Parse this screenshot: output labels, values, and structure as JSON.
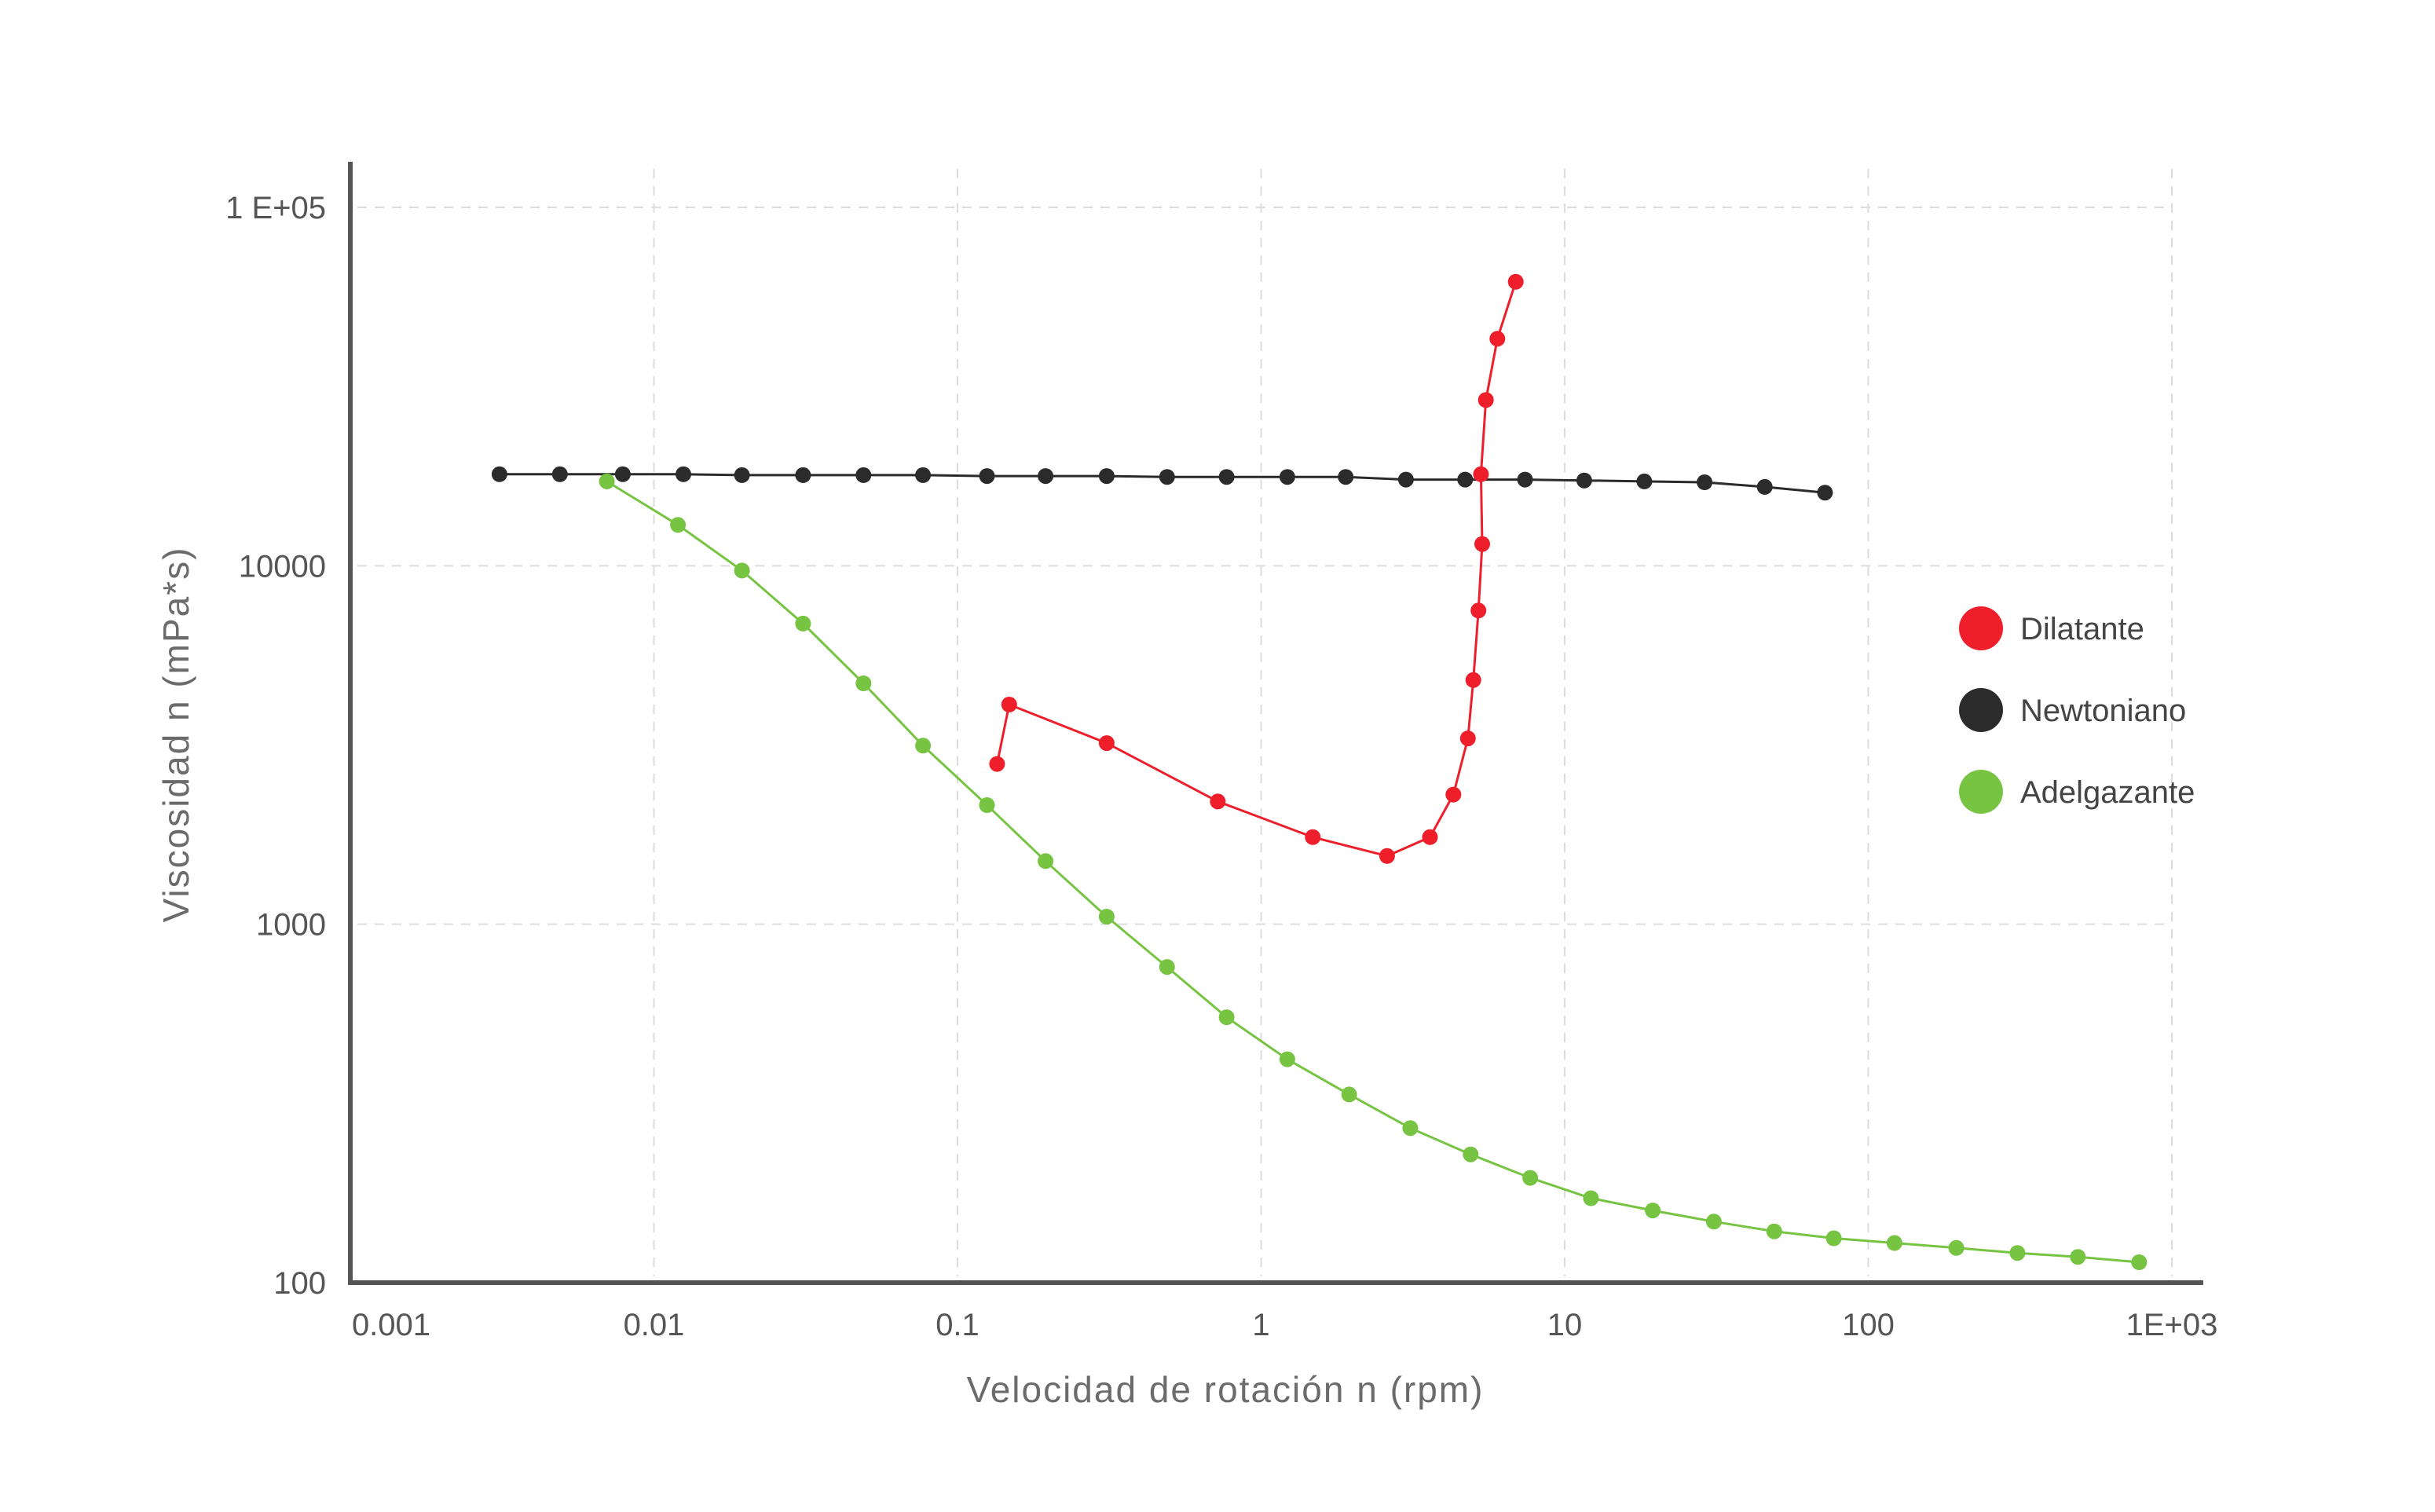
{
  "chart_data": {
    "type": "line",
    "xlabel": "Velocidad de rotación n (rpm)",
    "ylabel": "Viscosidad n (mPa*s)",
    "x_scale": "log",
    "y_scale": "log",
    "xlim": [
      0.001,
      1000
    ],
    "ylim": [
      100,
      100000
    ],
    "x_ticks": [
      {
        "value": 0.001,
        "label": "0.001"
      },
      {
        "value": 0.01,
        "label": "0.01"
      },
      {
        "value": 0.1,
        "label": "0.1"
      },
      {
        "value": 1,
        "label": "1"
      },
      {
        "value": 10,
        "label": "10"
      },
      {
        "value": 100,
        "label": "100"
      },
      {
        "value": 1000,
        "label": "1E+03"
      }
    ],
    "y_ticks": [
      {
        "value": 100,
        "label": "100"
      },
      {
        "value": 1000,
        "label": "1000"
      },
      {
        "value": 10000,
        "label": "10000"
      },
      {
        "value": 100000,
        "label": "1 E+05"
      }
    ],
    "grid": true,
    "legend_position": "right",
    "series": [
      {
        "name": "Dilatante",
        "color": "#ee1f2b",
        "x": [
          0.135,
          0.148,
          0.31,
          0.72,
          1.48,
          2.6,
          3.6,
          4.3,
          4.8,
          5.0,
          5.2,
          5.35,
          5.3,
          5.5,
          6.0,
          6.9
        ],
        "y": [
          2800,
          4100,
          3200,
          2200,
          1750,
          1550,
          1750,
          2300,
          3300,
          4800,
          7500,
          11500,
          18000,
          29000,
          43000,
          62000
        ]
      },
      {
        "name": "Newtoniano",
        "color": "#2b2b2b",
        "x": [
          0.0031,
          0.0049,
          0.0079,
          0.0125,
          0.0195,
          0.031,
          0.049,
          0.077,
          0.125,
          0.195,
          0.31,
          0.49,
          0.77,
          1.22,
          1.9,
          3.0,
          4.7,
          7.4,
          11.6,
          18.3,
          28.9,
          45.6,
          72
        ],
        "y": [
          18000,
          18000,
          18000,
          18000,
          17900,
          17900,
          17900,
          17900,
          17800,
          17800,
          17800,
          17700,
          17700,
          17700,
          17700,
          17400,
          17400,
          17400,
          17300,
          17200,
          17100,
          16600,
          16000
        ]
      },
      {
        "name": "Adelgazante",
        "color": "#76c442",
        "x": [
          0.007,
          0.012,
          0.0195,
          0.031,
          0.049,
          0.077,
          0.125,
          0.195,
          0.31,
          0.49,
          0.77,
          1.22,
          1.95,
          3.1,
          4.9,
          7.7,
          12.2,
          19.5,
          31,
          49,
          77,
          122,
          195,
          310,
          490,
          780
        ],
        "y": [
          17200,
          13000,
          9700,
          6900,
          4700,
          3150,
          2150,
          1500,
          1050,
          760,
          550,
          420,
          335,
          270,
          228,
          196,
          172,
          159,
          148,
          139,
          133,
          129,
          125,
          121,
          118,
          114
        ]
      }
    ]
  }
}
